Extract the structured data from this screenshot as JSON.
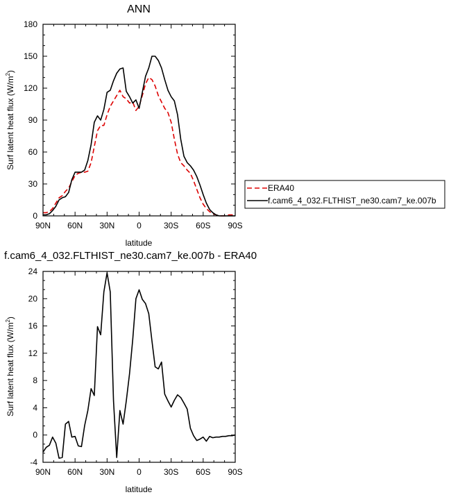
{
  "chart_data": [
    {
      "type": "line",
      "title": "ANN",
      "xlabel": "latitude",
      "ylabel": "Surf latent heat flux (W/m",
      "ylabel_sup": "2",
      "ylabel_close": ")",
      "xlim": [
        90,
        -90
      ],
      "ylim": [
        0,
        180
      ],
      "xticks": [
        90,
        60,
        30,
        0,
        -30,
        -60,
        -90
      ],
      "xtick_labels": [
        "90N",
        "60N",
        "30N",
        "0",
        "30S",
        "60S",
        "90S"
      ],
      "yticks": [
        0,
        30,
        60,
        90,
        120,
        150,
        180
      ],
      "ytick_labels": [
        "0",
        "30",
        "60",
        "90",
        "120",
        "150",
        "180"
      ],
      "x": [
        90,
        87,
        84,
        81,
        78,
        75,
        72,
        69,
        66,
        63,
        60,
        57,
        54,
        51,
        48,
        45,
        42,
        39,
        36,
        33,
        30,
        27,
        24,
        21,
        18,
        15,
        12,
        9,
        6,
        3,
        0,
        -3,
        -6,
        -9,
        -12,
        -15,
        -18,
        -21,
        -24,
        -27,
        -30,
        -33,
        -36,
        -39,
        -42,
        -45,
        -48,
        -51,
        -54,
        -57,
        -60,
        -63,
        -66,
        -69,
        -72,
        -75,
        -78,
        -81,
        -84,
        -87,
        -90
      ],
      "series": [
        {
          "name": "ERA40",
          "color": "#dd0000",
          "dash": true,
          "values": [
            3,
            3,
            4,
            7,
            12,
            17,
            19,
            23,
            26,
            32,
            38,
            40,
            41,
            41,
            42,
            50,
            65,
            80,
            85,
            85,
            95,
            103,
            108,
            113,
            118,
            112,
            110,
            106,
            107,
            99,
            103,
            113,
            124,
            130,
            128,
            122,
            113,
            107,
            101,
            97,
            88,
            72,
            58,
            50,
            47,
            43,
            40,
            33,
            25,
            17,
            11,
            7,
            4,
            2,
            1,
            0,
            0,
            0,
            1,
            1,
            0
          ]
        },
        {
          "name": "f.cam6_4_032.FLTHIST_ne30.cam7_ke.007b",
          "color": "#000000",
          "dash": false,
          "values": [
            1,
            1,
            2,
            5,
            9,
            15,
            17,
            18,
            22,
            34,
            41,
            41,
            41,
            43,
            52,
            67,
            88,
            94,
            90,
            100,
            116,
            118,
            127,
            134,
            138,
            139,
            117,
            112,
            106,
            109,
            101,
            116,
            131,
            139,
            150,
            150,
            146,
            139,
            128,
            118,
            112,
            108,
            95,
            72,
            56,
            50,
            47,
            43,
            37,
            29,
            20,
            12,
            6,
            3,
            1,
            0,
            0,
            0,
            0,
            0,
            0
          ]
        }
      ],
      "legend": "right, outside plot"
    },
    {
      "type": "line",
      "title": "f.cam6_4_032.FLTHIST_ne30.cam7_ke.007b - ERA40",
      "xlabel": "latitude",
      "ylabel": "Surf latent heat flux (W/m",
      "ylabel_sup": "2",
      "ylabel_close": ")",
      "xlim": [
        90,
        -90
      ],
      "ylim": [
        -4,
        24
      ],
      "xticks": [
        90,
        60,
        30,
        0,
        -30,
        -60,
        -90
      ],
      "xtick_labels": [
        "90N",
        "60N",
        "30N",
        "0",
        "30S",
        "60S",
        "90S"
      ],
      "yticks": [
        -4,
        0,
        4,
        8,
        12,
        16,
        20,
        24
      ],
      "ytick_labels": [
        "-4",
        "0",
        "4",
        "8",
        "12",
        "16",
        "20",
        "24"
      ],
      "x": [
        90,
        87,
        84,
        81,
        78,
        75,
        72,
        69,
        66,
        63,
        60,
        57,
        54,
        51,
        48,
        45,
        42,
        39,
        36,
        33,
        30,
        27,
        24,
        21,
        18,
        15,
        12,
        9,
        6,
        3,
        0,
        -3,
        -6,
        -9,
        -12,
        -15,
        -18,
        -21,
        -24,
        -27,
        -30,
        -33,
        -36,
        -39,
        -42,
        -45,
        -48,
        -51,
        -54,
        -57,
        -60,
        -63,
        -66,
        -69,
        -72,
        -75,
        -78,
        -81,
        -84,
        -87,
        -90
      ],
      "series": [
        {
          "color": "#000000",
          "values": [
            -2.5,
            -1.8,
            -1.5,
            -0.3,
            -1.2,
            -3.4,
            -3.3,
            1.6,
            2.0,
            -0.3,
            -0.2,
            -1.6,
            -1.7,
            1.4,
            3.6,
            6.8,
            5.8,
            15.9,
            14.7,
            21.0,
            23.8,
            21.0,
            5.0,
            -3.3,
            3.6,
            1.6,
            5.0,
            9.0,
            14.0,
            20.0,
            21.3,
            19.9,
            19.3,
            17.8,
            13.8,
            10.0,
            9.7,
            10.7,
            6.0,
            5.0,
            4.1,
            5.1,
            5.9,
            5.5,
            4.7,
            3.8,
            1.0,
            -0.1,
            -0.8,
            -0.6,
            -0.3,
            -0.9,
            -0.2,
            -0.4,
            -0.3,
            -0.3,
            -0.2,
            -0.2,
            -0.1,
            -0.1,
            0.0
          ]
        }
      ]
    }
  ]
}
